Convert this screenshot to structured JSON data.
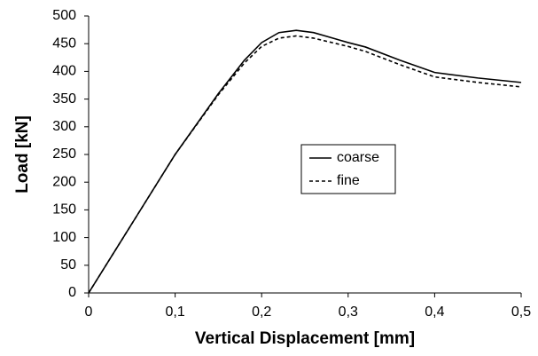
{
  "chart_data": {
    "type": "line",
    "xlabel": "Vertical Displacement [mm]",
    "ylabel": "Load [kN]",
    "x": [
      0,
      0.05,
      0.1,
      0.15,
      0.18,
      0.2,
      0.22,
      0.24,
      0.26,
      0.3,
      0.32,
      0.36,
      0.4,
      0.45,
      0.5
    ],
    "series": [
      {
        "name": "coarse",
        "color": "#000000",
        "linestyle": "solid",
        "values": [
          0,
          125,
          250,
          360,
          420,
          452,
          470,
          474,
          470,
          452,
          444,
          420,
          398,
          388,
          380
        ]
      },
      {
        "name": "fine",
        "color": "#000000",
        "linestyle": "dashed",
        "values": [
          0,
          125,
          250,
          358,
          415,
          445,
          460,
          464,
          460,
          445,
          436,
          412,
          390,
          380,
          372
        ]
      }
    ],
    "xlim": [
      0,
      0.5
    ],
    "xticks": [
      0,
      {
        "value": 0.1,
        "label": "0,1"
      },
      {
        "value": 0.2,
        "label": "0,2"
      },
      {
        "value": 0.3,
        "label": "0,3"
      },
      {
        "value": 0.4,
        "label": "0,4"
      },
      {
        "value": 0.5,
        "label": "0,5"
      }
    ],
    "ylim": [
      0,
      500
    ],
    "yticks": [
      0,
      50,
      100,
      150,
      200,
      250,
      300,
      350,
      400,
      450,
      500
    ],
    "grid": false,
    "legend": "center"
  }
}
